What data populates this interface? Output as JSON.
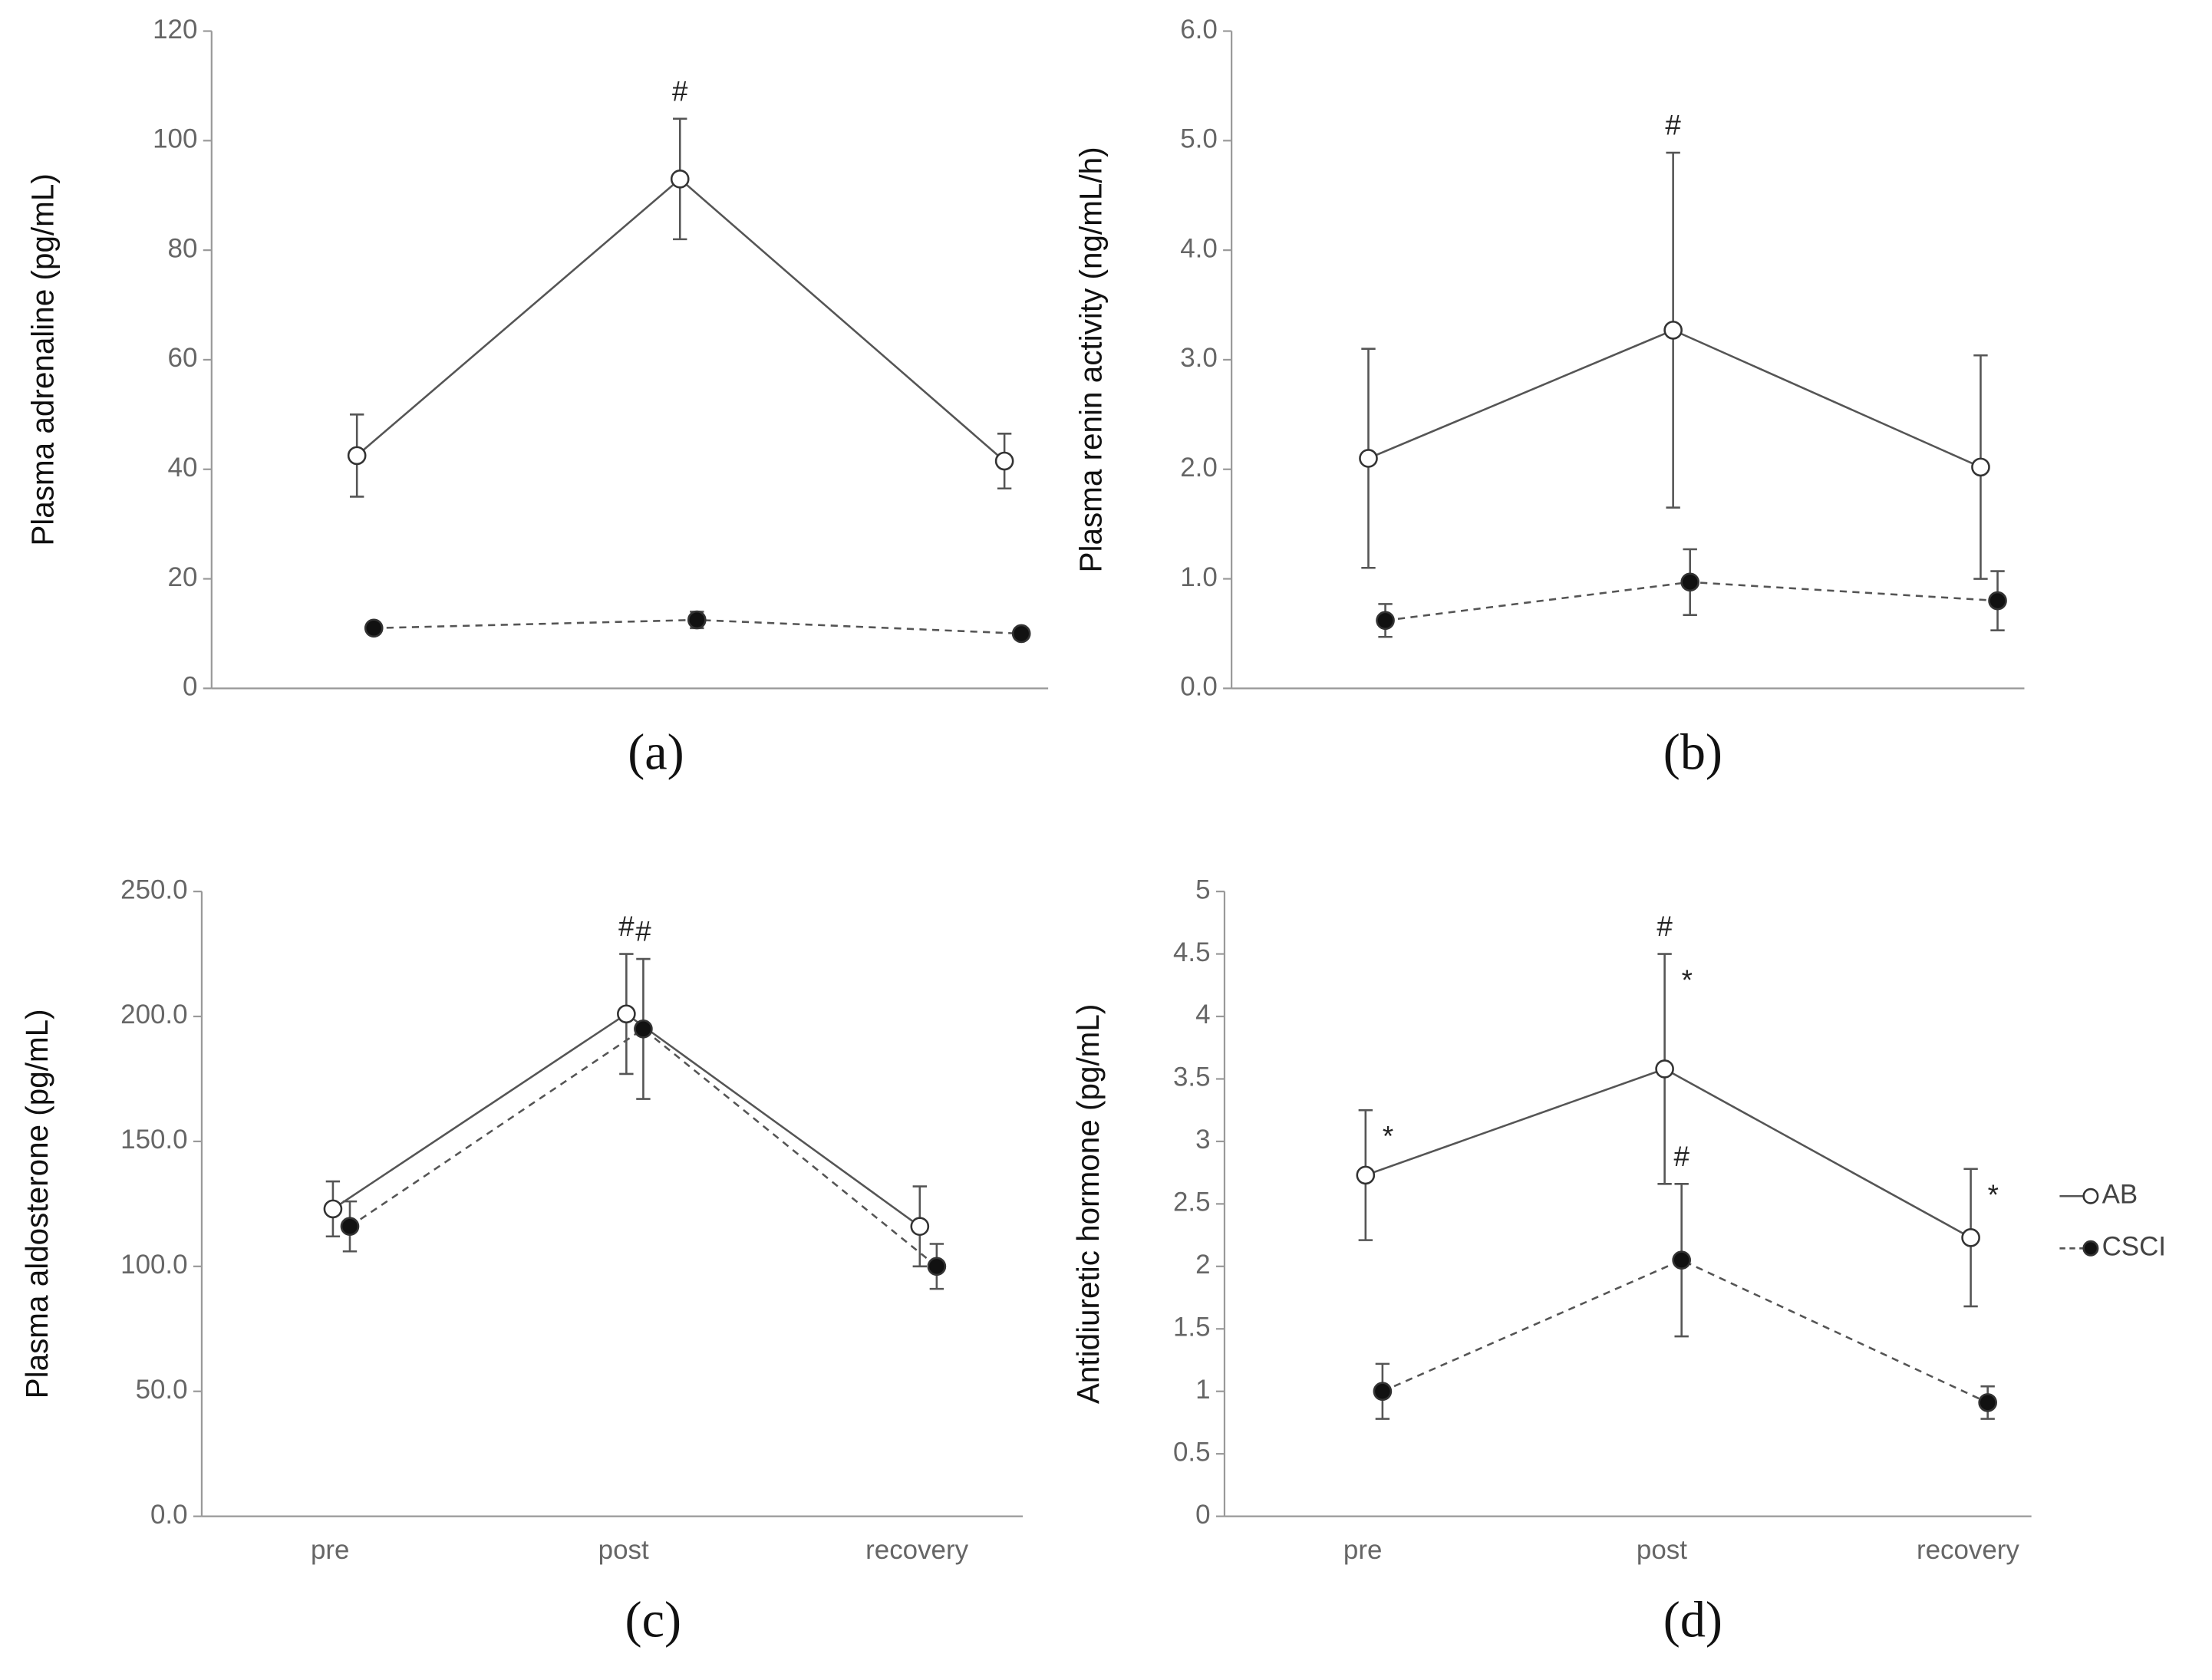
{
  "chart_data": [
    {
      "type": "line",
      "caption": "(a)",
      "ylabel": "Plasma  adrenaline (pg/mL)",
      "categories": [
        null,
        null,
        null
      ],
      "ylim": [
        0,
        120
      ],
      "yticks": [
        0,
        20,
        40,
        60,
        80,
        100,
        120
      ],
      "series": [
        {
          "color": "#555555",
          "marker": "open",
          "dashed": false,
          "values": [
            42.5,
            93,
            41.5
          ],
          "errors": [
            7.5,
            11,
            5
          ]
        },
        {
          "color": "#555555",
          "marker": "filled",
          "dashed": true,
          "values": [
            11,
            12.5,
            10
          ],
          "errors": [
            1,
            1.5,
            0.5
          ]
        }
      ],
      "annotations": [
        {
          "text": "#",
          "series": 0,
          "index": 1,
          "position": "above"
        }
      ]
    },
    {
      "type": "line",
      "caption": "(b)",
      "ylabel": "Plasma  renin activity (ng/mL/h)",
      "categories": [
        null,
        null,
        null
      ],
      "ylim": [
        0,
        6
      ],
      "yticks": [
        {
          "value": 0,
          "label": "0.0"
        },
        {
          "value": 1,
          "label": "1.0"
        },
        {
          "value": 2,
          "label": "2.0"
        },
        {
          "value": 3,
          "label": "3.0"
        },
        {
          "value": 4,
          "label": "4.0"
        },
        {
          "value": 5,
          "label": "5.0"
        },
        {
          "value": 6,
          "label": "6.0"
        }
      ],
      "series": [
        {
          "color": "#555555",
          "marker": "open",
          "dashed": false,
          "values": [
            2.1,
            3.27,
            2.02
          ],
          "errors": [
            1.0,
            1.62,
            1.02
          ]
        },
        {
          "color": "#555555",
          "marker": "filled",
          "dashed": true,
          "values": [
            0.62,
            0.97,
            0.8
          ],
          "errors": [
            0.15,
            0.3,
            0.27
          ]
        }
      ],
      "annotations": [
        {
          "text": "#",
          "series": 0,
          "index": 1,
          "position": "above"
        }
      ]
    },
    {
      "type": "line",
      "caption": "(c)",
      "ylabel": "Plasma  aldosterone (pg/mL)",
      "categories": [
        "pre",
        "post",
        "recovery"
      ],
      "ylim": [
        0,
        250
      ],
      "yticks": [
        {
          "value": 0,
          "label": "0.0"
        },
        {
          "value": 50,
          "label": "50.0"
        },
        {
          "value": 100,
          "label": "100.0"
        },
        {
          "value": 150,
          "label": "150.0"
        },
        {
          "value": 200,
          "label": "200.0"
        },
        {
          "value": 250,
          "label": "250.0"
        }
      ],
      "series": [
        {
          "color": "#555555",
          "marker": "open",
          "dashed": false,
          "values": [
            123,
            201,
            116
          ],
          "errors": [
            11,
            24,
            16
          ]
        },
        {
          "color": "#555555",
          "marker": "filled",
          "dashed": true,
          "values": [
            116,
            195,
            100
          ],
          "errors": [
            10,
            28,
            9
          ]
        }
      ],
      "annotations": [
        {
          "text": "#",
          "series": 0,
          "index": 1,
          "position": "above"
        },
        {
          "text": "#",
          "series": 1,
          "index": 1,
          "position": "above"
        }
      ]
    },
    {
      "type": "line",
      "caption": "(d)",
      "ylabel": "Antidiuretic hormone (pg/mL)",
      "categories": [
        "pre",
        "post",
        "recovery"
      ],
      "ylim": [
        0,
        5
      ],
      "yticks": [
        0,
        0.5,
        1,
        1.5,
        2,
        2.5,
        3,
        3.5,
        4,
        4.5,
        5
      ],
      "series": [
        {
          "name": "AB",
          "color": "#555555",
          "marker": "open",
          "dashed": false,
          "values": [
            2.73,
            3.58,
            2.23
          ],
          "errors": [
            0.52,
            0.92,
            0.55
          ]
        },
        {
          "name": "CSCI",
          "color": "#555555",
          "marker": "filled",
          "dashed": true,
          "values": [
            1.0,
            2.05,
            0.91
          ],
          "errors": [
            0.22,
            0.61,
            0.13
          ]
        }
      ],
      "annotations": [
        {
          "text": "*",
          "series": 0,
          "index": 0,
          "position": "right"
        },
        {
          "text": "#",
          "series": 0,
          "index": 1,
          "position": "above"
        },
        {
          "text": "*",
          "series": 0,
          "index": 1,
          "position": "right"
        },
        {
          "text": "*",
          "series": 0,
          "index": 2,
          "position": "right"
        },
        {
          "text": "#",
          "series": 1,
          "index": 1,
          "position": "above"
        }
      ],
      "legend": "right"
    }
  ]
}
